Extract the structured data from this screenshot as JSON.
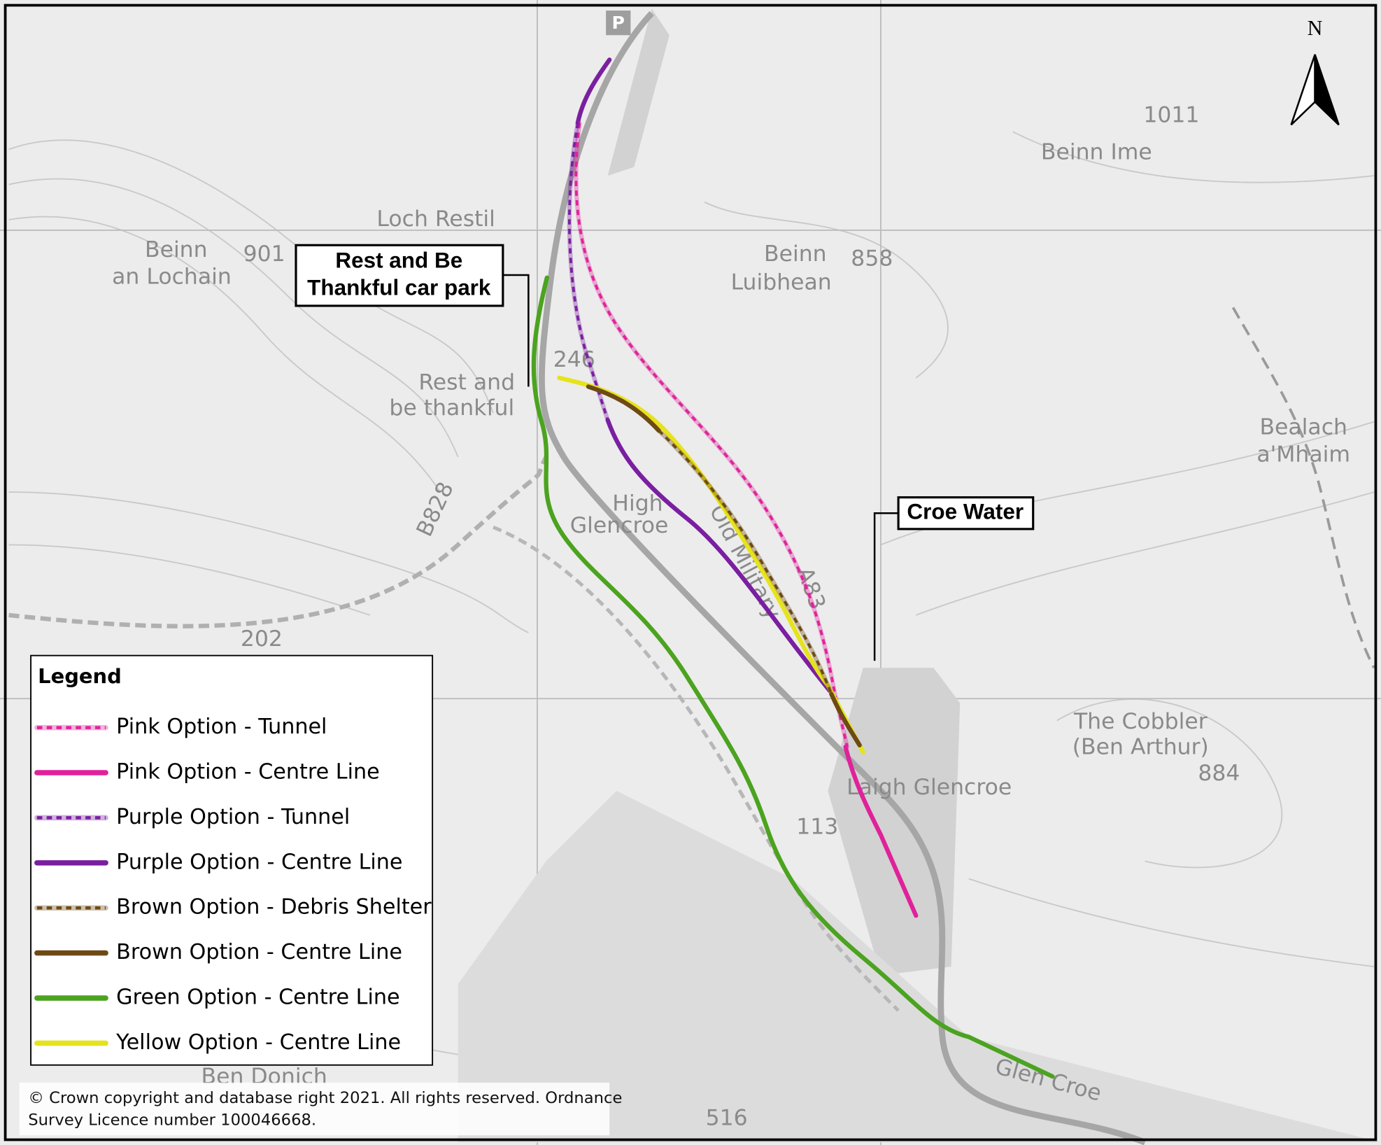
{
  "north_label": "N",
  "place_labels": [
    "Beinn",
    "an Lochain",
    "901",
    "Loch Restil",
    "Rest and",
    "be thankful",
    "246",
    "Beinn",
    "858",
    "Luibhean",
    "Beinn Ime",
    "1011",
    "Bealach",
    "a'Mhaim",
    "High",
    "Glencroe",
    "Old Military",
    "B828",
    "202",
    "The Cobbler",
    "(Ben Arthur)",
    "884",
    "Laigh Glencroe",
    "113",
    "Ben Donich",
    "516",
    "Glen Croe",
    "A83"
  ],
  "callouts": [
    {
      "lines": [
        "Rest and Be",
        "Thankful car park"
      ]
    },
    {
      "lines": [
        "Croe Water"
      ]
    }
  ],
  "legend": {
    "title": "Legend",
    "items": [
      {
        "label": "Pink Option - Tunnel",
        "color": "#e0229a",
        "style": "tunnel"
      },
      {
        "label": "Pink Option - Centre Line",
        "color": "#e0229a",
        "style": "solid"
      },
      {
        "label": "Purple Option - Tunnel",
        "color": "#7a1fa0",
        "style": "tunnel"
      },
      {
        "label": "Purple Option - Centre Line",
        "color": "#7a1fa0",
        "style": "solid"
      },
      {
        "label": "Brown Option - Debris Shelter",
        "color": "#6e4a14",
        "style": "tunnel"
      },
      {
        "label": "Brown Option - Centre Line",
        "color": "#6e4a14",
        "style": "solid"
      },
      {
        "label": "Green Option - Centre Line",
        "color": "#4ba31f",
        "style": "solid"
      },
      {
        "label": "Yellow Option - Centre Line",
        "color": "#e6e31c",
        "style": "solid"
      }
    ]
  },
  "copyright": [
    "© Crown copyright and database right 2021. All rights reserved. Ordnance",
    "Survey Licence number 100046668."
  ]
}
